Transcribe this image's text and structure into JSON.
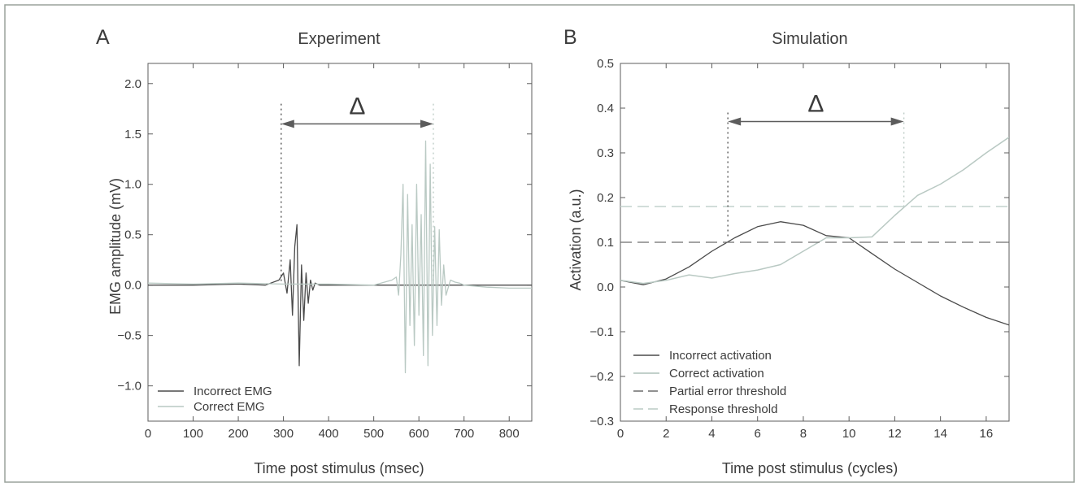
{
  "colors": {
    "frame": "#9aa29c",
    "axis": "#5c5c5c",
    "incorrect": "#4a4a4a",
    "correct": "#b9c9c3",
    "partial_threshold": "#6d6d6d",
    "response_threshold": "#c4d2cd"
  },
  "chart_data": [
    {
      "type": "line",
      "panel_label": "A",
      "title": "Experiment",
      "xlabel": "Time post stimulus (msec)",
      "ylabel": "EMG amplitude (mV)",
      "xlim": [
        0,
        850
      ],
      "ylim": [
        -1.35,
        2.2
      ],
      "xticks": [
        0,
        100,
        200,
        300,
        400,
        500,
        600,
        700,
        800
      ],
      "yticks": [
        -1.0,
        -0.5,
        0.0,
        0.5,
        1.0,
        1.5,
        2.0
      ],
      "ytick_labels": [
        "−1.0",
        "−0.5",
        "0.0",
        "0.5",
        "1.0",
        "1.5",
        "2.0"
      ],
      "grid": false,
      "legend_position": "bottom-left",
      "annotation": {
        "label": "Δ",
        "x_start": 295,
        "x_end": 632,
        "y": 1.6,
        "line_top": 1.8
      },
      "series": [
        {
          "name": "Incorrect EMG",
          "x": [
            0,
            100,
            200,
            260,
            290,
            300,
            308,
            315,
            320,
            325,
            330,
            335,
            340,
            345,
            350,
            355,
            360,
            365,
            370,
            380,
            400,
            500,
            600,
            700,
            850
          ],
          "y": [
            0.0,
            0.0,
            0.01,
            0.0,
            0.05,
            0.12,
            -0.08,
            0.25,
            -0.3,
            0.38,
            0.6,
            -0.8,
            0.2,
            -0.35,
            0.12,
            -0.18,
            0.05,
            -0.05,
            0.02,
            0.0,
            0.0,
            0.0,
            0.0,
            0.0,
            0.0
          ]
        },
        {
          "name": "Correct EMG",
          "x": [
            0,
            100,
            200,
            300,
            400,
            500,
            540,
            550,
            555,
            560,
            565,
            570,
            575,
            580,
            585,
            590,
            595,
            600,
            605,
            610,
            615,
            620,
            625,
            630,
            635,
            640,
            645,
            650,
            655,
            660,
            670,
            680,
            690,
            700,
            750,
            800,
            850
          ],
          "y": [
            0.02,
            0.01,
            0.02,
            0.01,
            0.01,
            0.0,
            0.05,
            0.08,
            -0.1,
            0.3,
            1.0,
            -0.87,
            0.9,
            -0.4,
            0.6,
            -0.6,
            1.0,
            -0.3,
            0.7,
            -0.7,
            1.43,
            -0.8,
            1.2,
            -0.5,
            0.58,
            -0.4,
            0.55,
            -0.2,
            0.2,
            -0.1,
            0.05,
            0.03,
            0.02,
            0.0,
            -0.02,
            -0.03,
            -0.03
          ]
        }
      ]
    },
    {
      "type": "line",
      "panel_label": "B",
      "title": "Simulation",
      "xlabel": "Time post stimulus (cycles)",
      "ylabel": "Activation (a.u.)",
      "xlim": [
        0,
        17
      ],
      "ylim": [
        -0.3,
        0.5
      ],
      "xticks": [
        0,
        2,
        4,
        6,
        8,
        10,
        12,
        14,
        16
      ],
      "yticks": [
        -0.3,
        -0.2,
        -0.1,
        0.0,
        0.1,
        0.2,
        0.3,
        0.4,
        0.5
      ],
      "ytick_labels": [
        "−0.3",
        "−0.2",
        "−0.1",
        "0.0",
        "0.1",
        "0.2",
        "0.3",
        "0.4",
        "0.5"
      ],
      "grid": false,
      "legend_position": "bottom-left",
      "annotation": {
        "label": "Δ",
        "x_start": 4.7,
        "x_end": 12.4,
        "y": 0.37,
        "line_top": 0.39,
        "line_bottom_start": 0.11,
        "line_bottom_end": 0.18
      },
      "series": [
        {
          "name": "Incorrect activation",
          "x": [
            0,
            1,
            2,
            3,
            4,
            5,
            6,
            7,
            8,
            9,
            10,
            11,
            12,
            13,
            14,
            15,
            16,
            17
          ],
          "y": [
            0.015,
            0.005,
            0.018,
            0.045,
            0.08,
            0.11,
            0.135,
            0.146,
            0.138,
            0.115,
            0.11,
            0.075,
            0.04,
            0.01,
            -0.02,
            -0.045,
            -0.068,
            -0.085
          ]
        },
        {
          "name": "Correct activation",
          "x": [
            0,
            1,
            2,
            3,
            4,
            5,
            6,
            7,
            8,
            9,
            10,
            11,
            12,
            13,
            14,
            15,
            16,
            17
          ],
          "y": [
            0.015,
            0.008,
            0.015,
            0.027,
            0.02,
            0.03,
            0.038,
            0.05,
            0.08,
            0.11,
            0.11,
            0.112,
            0.16,
            0.205,
            0.23,
            0.262,
            0.3,
            0.335
          ]
        },
        {
          "name": "Partial error threshold",
          "x": [
            0,
            17
          ],
          "y": [
            0.1,
            0.1
          ]
        },
        {
          "name": "Response threshold",
          "x": [
            0,
            17
          ],
          "y": [
            0.18,
            0.18
          ]
        }
      ]
    }
  ]
}
